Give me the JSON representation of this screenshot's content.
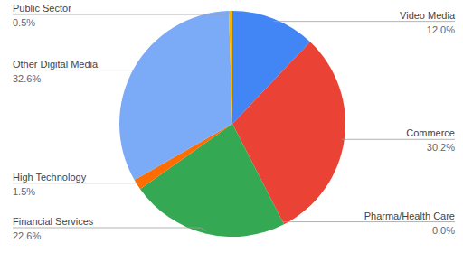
{
  "chart_data": {
    "type": "pie",
    "categories": [
      "Video Media",
      "Commerce",
      "Pharma/Health Care",
      "Financial Services",
      "High Technology",
      "Other Digital Media",
      "Public Sector"
    ],
    "values": [
      12.0,
      30.2,
      0.0,
      22.6,
      1.5,
      32.6,
      0.5
    ],
    "value_labels": [
      "12.0%",
      "30.2%",
      "0.0%",
      "22.6%",
      "1.5%",
      "32.6%",
      "0.5%"
    ],
    "colors": [
      "#4285f4",
      "#ea4335",
      "#fbbc04",
      "#34a853",
      "#ff6d01",
      "#7baaf7",
      "#f4b400"
    ],
    "data_labels": true
  }
}
